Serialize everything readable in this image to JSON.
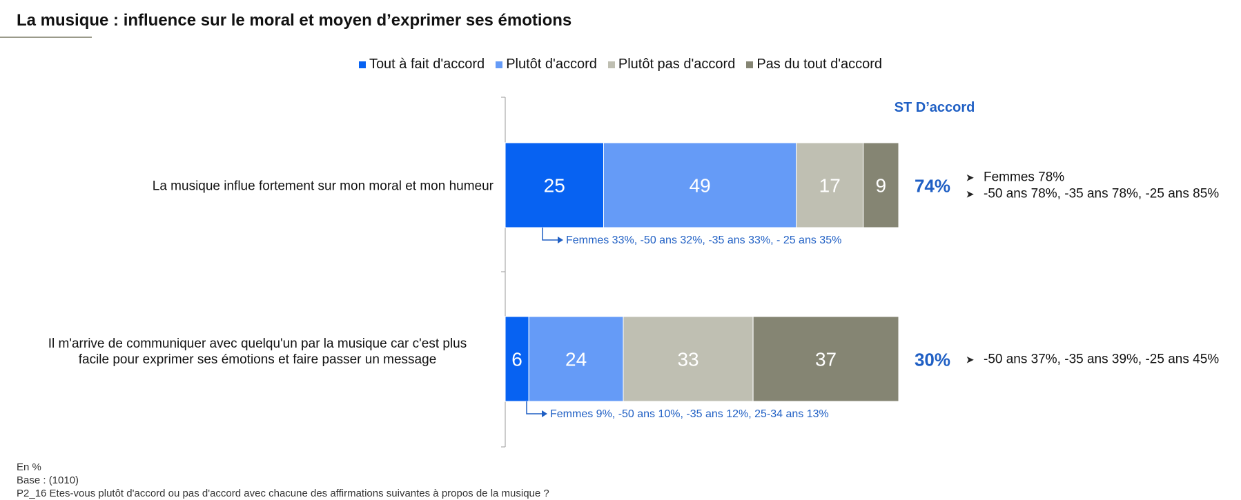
{
  "title": "La musique : influence sur le moral et moyen d’exprimer ses émotions",
  "colors": {
    "tout_a_fait": "#0762f2",
    "plutot": "#659bf7",
    "plutot_pas": "#bfbfb2",
    "pas_du_tout": "#858573",
    "accent_text": "#1f5fc4"
  },
  "chart_data": {
    "type": "bar",
    "orientation": "horizontal",
    "stacked": true,
    "title": "La musique : influence sur le moral et moyen d’exprimer ses émotions",
    "xlim": [
      0,
      100
    ],
    "legend_position": "top",
    "categories": [
      "La musique influe fortement sur mon moral et mon humeur",
      "Il m'arrive de communiquer avec quelqu'un par la musique car c'est plus facile pour exprimer ses émotions et faire passer un message"
    ],
    "category_lines": [
      [
        "La musique influe fortement sur mon moral et mon humeur"
      ],
      [
        "Il m'arrive de communiquer avec quelqu'un par la musique car c'est plus",
        "facile pour exprimer ses émotions et faire passer un message"
      ]
    ],
    "series": [
      {
        "name": "Tout à fait d'accord",
        "values": [
          25,
          6
        ]
      },
      {
        "name": "Plutôt d'accord",
        "values": [
          49,
          24
        ]
      },
      {
        "name": "Plutôt pas d'accord",
        "values": [
          17,
          33
        ]
      },
      {
        "name": "Pas du tout d'accord",
        "values": [
          9,
          37
        ]
      }
    ],
    "st_header": "ST D’accord",
    "st_values": [
      "74%",
      "30%"
    ],
    "st_notes": [
      [
        "Femmes 78%",
        "-50 ans 78%, -35 ans 78%, -25 ans 85%"
      ],
      [
        "-50 ans 37%, -35 ans 39%, -25 ans 45%"
      ]
    ],
    "bar_notes": [
      "Femmes 33%, -50 ans 32%, -35 ans 33%, - 25 ans 35%",
      "Femmes 9%, -50 ans 10%, -35 ans 12%, 25-34 ans 13%"
    ]
  },
  "footer": {
    "line1": "En %",
    "line2": "Base : (1010)",
    "line3": "P2_16 Etes-vous plutôt d'accord ou pas d'accord avec chacune des affirmations suivantes à propos de la musique ?"
  }
}
